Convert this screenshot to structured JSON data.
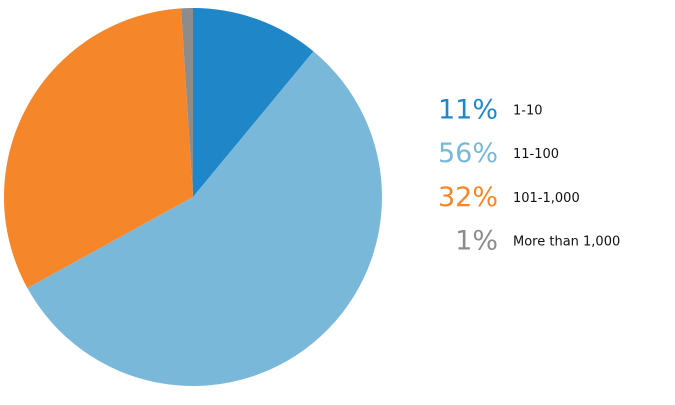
{
  "chart_data": {
    "type": "pie",
    "categories": [
      "1-10",
      "11-100",
      "101-1,000",
      "More than 1,000"
    ],
    "values": [
      11,
      56,
      32,
      1
    ],
    "value_labels": [
      "11%",
      "56%",
      "32%",
      "1%"
    ],
    "colors": [
      "#1f87c8",
      "#7ab8d9",
      "#f6862a",
      "#8c8c8c"
    ]
  }
}
